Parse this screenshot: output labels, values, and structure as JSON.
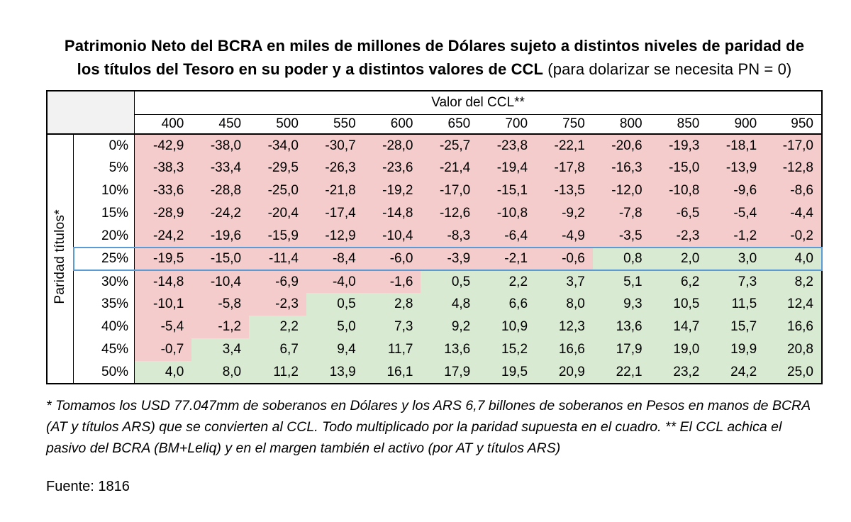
{
  "title": {
    "line1": "Patrimonio Neto del BCRA en miles de millones de Dólares sujeto a distintos niveles de paridad de",
    "line2_bold": "los títulos del Tesoro en su poder y a distintos valores de CCL",
    "line2_normal": " (para dolarizar se necesita PN = 0)"
  },
  "chart_data": {
    "type": "table",
    "col_group_label": "Valor del CCL**",
    "row_group_label": "Paridad títulos*",
    "columns": [
      400,
      450,
      500,
      550,
      600,
      650,
      700,
      750,
      800,
      850,
      900,
      950
    ],
    "rows": [
      {
        "paridad": "0%",
        "values": [
          -42.9,
          -38.0,
          -34.0,
          -30.7,
          -28.0,
          -25.7,
          -23.8,
          -22.1,
          -20.6,
          -19.3,
          -18.1,
          -17.0
        ]
      },
      {
        "paridad": "5%",
        "values": [
          -38.3,
          -33.4,
          -29.5,
          -26.3,
          -23.6,
          -21.4,
          -19.4,
          -17.8,
          -16.3,
          -15.0,
          -13.9,
          -12.8
        ]
      },
      {
        "paridad": "10%",
        "values": [
          -33.6,
          -28.8,
          -25.0,
          -21.8,
          -19.2,
          -17.0,
          -15.1,
          -13.5,
          -12.0,
          -10.8,
          -9.6,
          -8.6
        ]
      },
      {
        "paridad": "15%",
        "values": [
          -28.9,
          -24.2,
          -20.4,
          -17.4,
          -14.8,
          -12.6,
          -10.8,
          -9.2,
          -7.8,
          -6.5,
          -5.4,
          -4.4
        ]
      },
      {
        "paridad": "20%",
        "values": [
          -24.2,
          -19.6,
          -15.9,
          -12.9,
          -10.4,
          -8.3,
          -6.4,
          -4.9,
          -3.5,
          -2.3,
          -1.2,
          -0.2
        ]
      },
      {
        "paridad": "25%",
        "values": [
          -19.5,
          -15.0,
          -11.4,
          -8.4,
          -6.0,
          -3.9,
          -2.1,
          -0.6,
          0.8,
          2.0,
          3.0,
          4.0
        ]
      },
      {
        "paridad": "30%",
        "values": [
          -14.8,
          -10.4,
          -6.9,
          -4.0,
          -1.6,
          0.5,
          2.2,
          3.7,
          5.1,
          6.2,
          7.3,
          8.2
        ]
      },
      {
        "paridad": "35%",
        "values": [
          -10.1,
          -5.8,
          -2.3,
          0.5,
          2.8,
          4.8,
          6.6,
          8.0,
          9.3,
          10.5,
          11.5,
          12.4
        ]
      },
      {
        "paridad": "40%",
        "values": [
          -5.4,
          -1.2,
          2.2,
          5.0,
          7.3,
          9.2,
          10.9,
          12.3,
          13.6,
          14.7,
          15.7,
          16.6
        ]
      },
      {
        "paridad": "45%",
        "values": [
          -0.7,
          3.4,
          6.7,
          9.4,
          11.7,
          13.6,
          15.2,
          16.6,
          17.9,
          19.0,
          19.9,
          20.8
        ]
      },
      {
        "paridad": "50%",
        "values": [
          4.0,
          8.0,
          11.2,
          13.9,
          16.1,
          17.9,
          19.5,
          20.9,
          22.1,
          23.2,
          24.2,
          25.0
        ]
      }
    ],
    "highlight_row": "25%",
    "decimal_separator": ",",
    "colors": {
      "negative_bg": "#f4cccc",
      "positive_bg": "#d9ead3",
      "highlight_border": "#5b9bd5",
      "corner_bg": "#f2f2f2"
    }
  },
  "footnote": "* Tomamos los USD 77.047mm de soberanos en Dólares y los ARS 6,7 billones de soberanos en Pesos en manos de BCRA (AT y títulos ARS) que se convierten al CCL. Todo multiplicado por la paridad supuesta en el cuadro. ** El CCL achica el pasivo del BCRA (BM+Leliq) y en el margen también el activo (por AT y títulos ARS)",
  "source": "Fuente: 1816"
}
